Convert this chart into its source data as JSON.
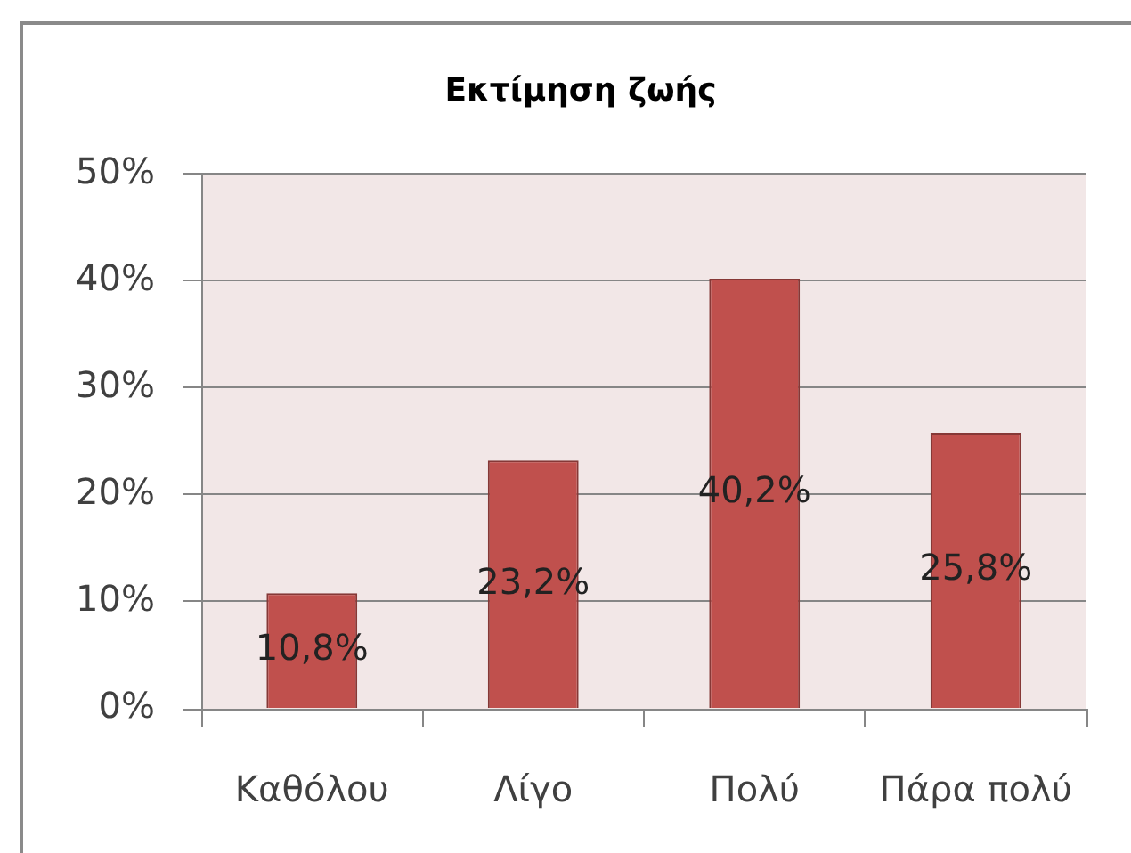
{
  "chart_data": {
    "type": "bar",
    "title": "Εκτίμηση ζωής",
    "categories": [
      "Καθόλου",
      "Λίγο",
      "Πολύ",
      "Πάρα πολύ"
    ],
    "values": [
      10.8,
      23.2,
      40.2,
      25.8
    ],
    "value_labels": [
      "10,8%",
      "23,2%",
      "40,2%",
      "25,8%"
    ],
    "color": "#c0504d",
    "ylim": [
      0,
      50
    ],
    "yticks": [
      {
        "value": 0,
        "label": "0%"
      },
      {
        "value": 10,
        "label": "10%"
      },
      {
        "value": 20,
        "label": "20%"
      },
      {
        "value": 30,
        "label": "30%"
      },
      {
        "value": 40,
        "label": "40%"
      },
      {
        "value": 50,
        "label": "50%"
      }
    ],
    "grid": "y"
  }
}
